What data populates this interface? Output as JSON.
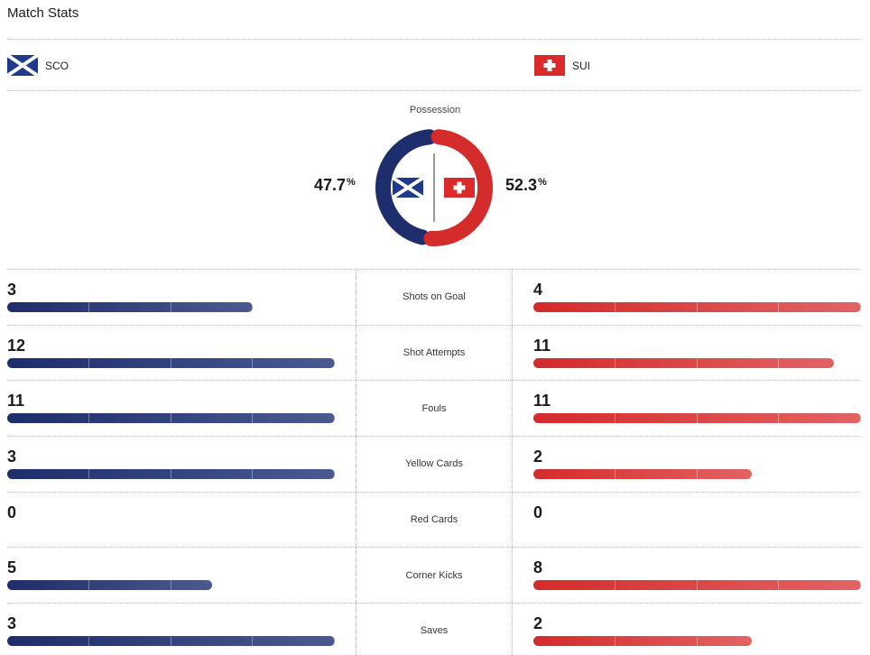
{
  "title": "Match Stats",
  "teams": {
    "home": {
      "abbr": "SCO",
      "flag_icon": "scotland-flag-icon",
      "color": "#1e2d6b"
    },
    "away": {
      "abbr": "SUI",
      "flag_icon": "switzerland-flag-icon",
      "color": "#d42b2b"
    }
  },
  "possession": {
    "label": "Possession",
    "home": "47.7",
    "away": "52.3",
    "unit": "%"
  },
  "stats": [
    {
      "label": "Shots on Goal",
      "home": "3",
      "away": "4"
    },
    {
      "label": "Shot Attempts",
      "home": "12",
      "away": "11"
    },
    {
      "label": "Fouls",
      "home": "11",
      "away": "11"
    },
    {
      "label": "Yellow Cards",
      "home": "3",
      "away": "2"
    },
    {
      "label": "Red Cards",
      "home": "0",
      "away": "0"
    },
    {
      "label": "Corner Kicks",
      "home": "5",
      "away": "8"
    },
    {
      "label": "Saves",
      "home": "3",
      "away": "2"
    }
  ]
}
